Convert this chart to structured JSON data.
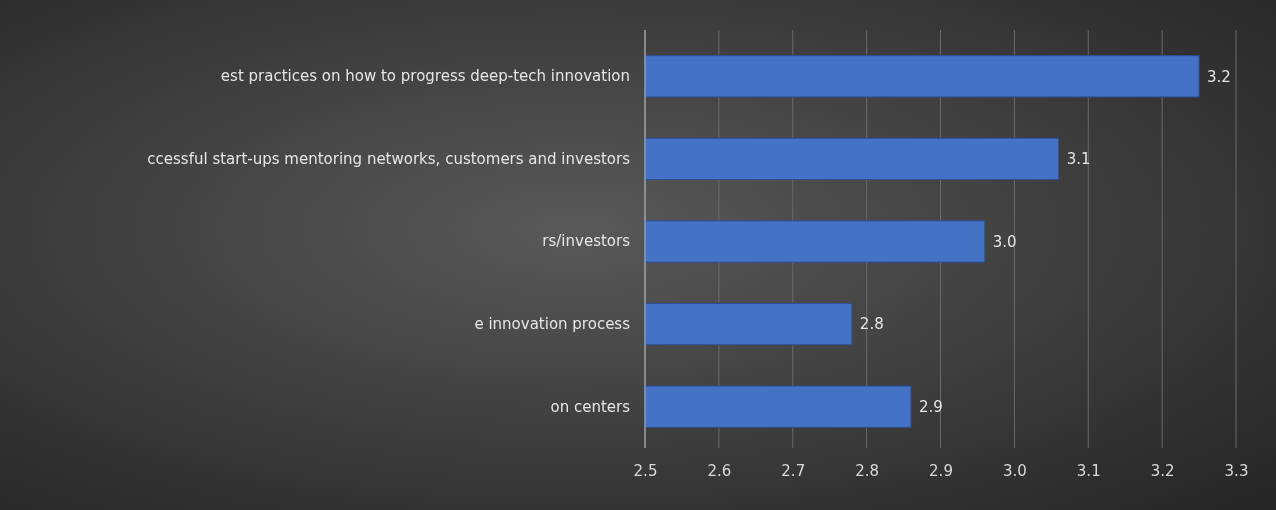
{
  "chart_data": {
    "type": "bar",
    "orientation": "horizontal",
    "categories": [
      "est practices on how to progress deep-tech innovation",
      "ccessful start-ups mentoring networks, customers and investors",
      "rs/investors",
      "e innovation process",
      "on centers"
    ],
    "values": [
      3.25,
      3.06,
      2.96,
      2.78,
      2.86
    ],
    "value_labels": [
      "3.2",
      "3.1",
      "3.0",
      "2.8",
      "2.9"
    ],
    "color": "#4472c4",
    "xlim": [
      2.5,
      3.3
    ],
    "xticks": [
      "2.5",
      "2.6",
      "2.7",
      "2.8",
      "2.9",
      "3.0",
      "3.1",
      "3.2",
      "3.3"
    ],
    "grid": "x"
  }
}
